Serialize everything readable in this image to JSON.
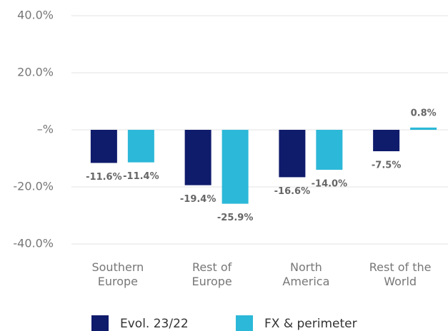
{
  "chart_data": {
    "type": "bar",
    "categories": [
      [
        "Southern",
        "Europe"
      ],
      [
        "Rest of",
        "Europe"
      ],
      [
        "North",
        "America"
      ],
      [
        "Rest of the",
        "World"
      ]
    ],
    "series": [
      {
        "name": "Evol. 23/22",
        "color": "#0f1b6b",
        "values": [
          -11.6,
          -19.4,
          -16.6,
          -7.5
        ],
        "value_labels": [
          "-11.6%",
          "-19.4%",
          "-16.6%",
          "-7.5%"
        ]
      },
      {
        "name": "FX & perimeter",
        "color": "#2cb8d8",
        "values": [
          -11.4,
          -25.9,
          -14.0,
          0.8
        ],
        "value_labels": [
          "-11.4%",
          "-25.9%",
          "-14.0%",
          "0.8%"
        ]
      }
    ],
    "ylim": [
      -40,
      40
    ],
    "yticks": [
      {
        "value": -40,
        "label": "-40.0%"
      },
      {
        "value": -20,
        "label": "-20.0%"
      },
      {
        "value": 0,
        "label": "–%"
      },
      {
        "value": 20,
        "label": "20.0%"
      },
      {
        "value": 40,
        "label": "40.0%"
      }
    ],
    "grid": true,
    "legend": "bottom"
  }
}
